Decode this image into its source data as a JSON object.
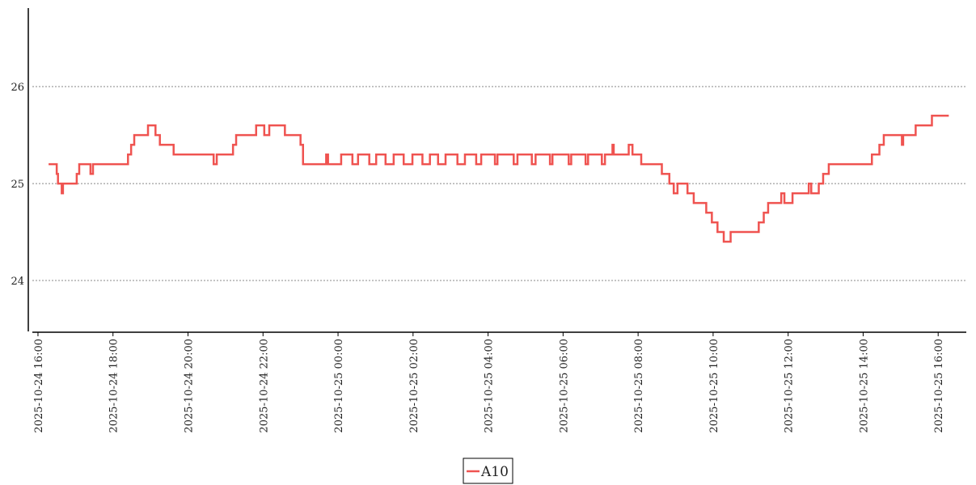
{
  "chart_data": {
    "type": "line",
    "drawstyle": "steps-post",
    "grid": true,
    "legend": "bottom",
    "xlim": [
      "2025-10-24 15:51",
      "2025-10-25 16:45"
    ],
    "xticks": [
      "2025-10-24 16:00",
      "2025-10-24 18:00",
      "2025-10-24 20:00",
      "2025-10-24 22:00",
      "2025-10-25 00:00",
      "2025-10-25 02:00",
      "2025-10-25 04:00",
      "2025-10-25 06:00",
      "2025-10-25 08:00",
      "2025-10-25 10:00",
      "2025-10-25 12:00",
      "2025-10-25 14:00",
      "2025-10-25 16:00"
    ],
    "ylim": [
      23.475,
      26.81
    ],
    "yticks": [
      24,
      25,
      26
    ],
    "x": [
      "2025-10-24 16:17",
      "2025-10-24 16:30",
      "2025-10-24 16:32",
      "2025-10-24 16:38",
      "2025-10-24 16:40",
      "2025-10-24 17:02",
      "2025-10-24 17:06",
      "2025-10-24 17:24",
      "2025-10-24 17:28",
      "2025-10-24 18:24",
      "2025-10-24 18:29",
      "2025-10-24 18:34",
      "2025-10-24 18:56",
      "2025-10-24 19:08",
      "2025-10-24 19:15",
      "2025-10-24 19:37",
      "2025-10-24 20:41",
      "2025-10-24 20:46",
      "2025-10-24 21:12",
      "2025-10-24 21:17",
      "2025-10-24 21:49",
      "2025-10-24 22:02",
      "2025-10-24 22:10",
      "2025-10-24 22:35",
      "2025-10-24 23:00",
      "2025-10-24 23:04",
      "2025-10-24 23:41",
      "2025-10-24 23:44",
      "2025-10-25 00:05",
      "2025-10-25 00:23",
      "2025-10-25 00:32",
      "2025-10-25 00:50",
      "2025-10-25 01:01",
      "2025-10-25 01:16",
      "2025-10-25 01:29",
      "2025-10-25 01:45",
      "2025-10-25 01:59",
      "2025-10-25 02:15",
      "2025-10-25 02:27",
      "2025-10-25 02:40",
      "2025-10-25 02:52",
      "2025-10-25 03:11",
      "2025-10-25 03:23",
      "2025-10-25 03:41",
      "2025-10-25 03:49",
      "2025-10-25 04:11",
      "2025-10-25 04:15",
      "2025-10-25 04:41",
      "2025-10-25 04:47",
      "2025-10-25 05:10",
      "2025-10-25 05:16",
      "2025-10-25 05:39",
      "2025-10-25 05:43",
      "2025-10-25 06:09",
      "2025-10-25 06:13",
      "2025-10-25 06:36",
      "2025-10-25 06:40",
      "2025-10-25 07:02",
      "2025-10-25 07:07",
      "2025-10-25 07:19",
      "2025-10-25 07:21",
      "2025-10-25 07:45",
      "2025-10-25 07:51",
      "2025-10-25 08:05",
      "2025-10-25 08:38",
      "2025-10-25 08:50",
      "2025-10-25 08:57",
      "2025-10-25 09:03",
      "2025-10-25 09:19",
      "2025-10-25 09:29",
      "2025-10-25 09:49",
      "2025-10-25 09:58",
      "2025-10-25 10:07",
      "2025-10-25 10:17",
      "2025-10-25 10:28",
      "2025-10-25 11:13",
      "2025-10-25 11:21",
      "2025-10-25 11:28",
      "2025-10-25 11:49",
      "2025-10-25 11:54",
      "2025-10-25 12:07",
      "2025-10-25 12:33",
      "2025-10-25 12:37",
      "2025-10-25 12:49",
      "2025-10-25 12:56",
      "2025-10-25 13:05",
      "2025-10-25 14:14",
      "2025-10-25 14:26",
      "2025-10-25 14:33",
      "2025-10-25 15:02",
      "2025-10-25 15:04",
      "2025-10-25 15:24",
      "2025-10-25 15:50",
      "2025-10-25 16:17"
    ],
    "series": [
      {
        "name": "A10",
        "color": "#ef5350",
        "values": [
          25.2,
          25.1,
          25.0,
          24.9,
          25.0,
          25.1,
          25.2,
          25.1,
          25.2,
          25.3,
          25.4,
          25.5,
          25.6,
          25.5,
          25.4,
          25.3,
          25.2,
          25.3,
          25.4,
          25.5,
          25.6,
          25.5,
          25.6,
          25.5,
          25.4,
          25.2,
          25.3,
          25.2,
          25.3,
          25.2,
          25.3,
          25.2,
          25.3,
          25.2,
          25.3,
          25.2,
          25.3,
          25.2,
          25.3,
          25.2,
          25.3,
          25.2,
          25.3,
          25.2,
          25.3,
          25.2,
          25.3,
          25.2,
          25.3,
          25.2,
          25.3,
          25.2,
          25.3,
          25.2,
          25.3,
          25.2,
          25.3,
          25.2,
          25.3,
          25.4,
          25.3,
          25.4,
          25.3,
          25.2,
          25.1,
          25.0,
          24.9,
          25.0,
          24.9,
          24.8,
          24.7,
          24.6,
          24.5,
          24.4,
          24.5,
          24.6,
          24.7,
          24.8,
          24.9,
          24.8,
          24.9,
          25.0,
          24.9,
          25.0,
          25.1,
          25.2,
          25.3,
          25.4,
          25.5,
          25.4,
          25.5,
          25.6,
          25.7,
          25.7
        ]
      }
    ]
  }
}
